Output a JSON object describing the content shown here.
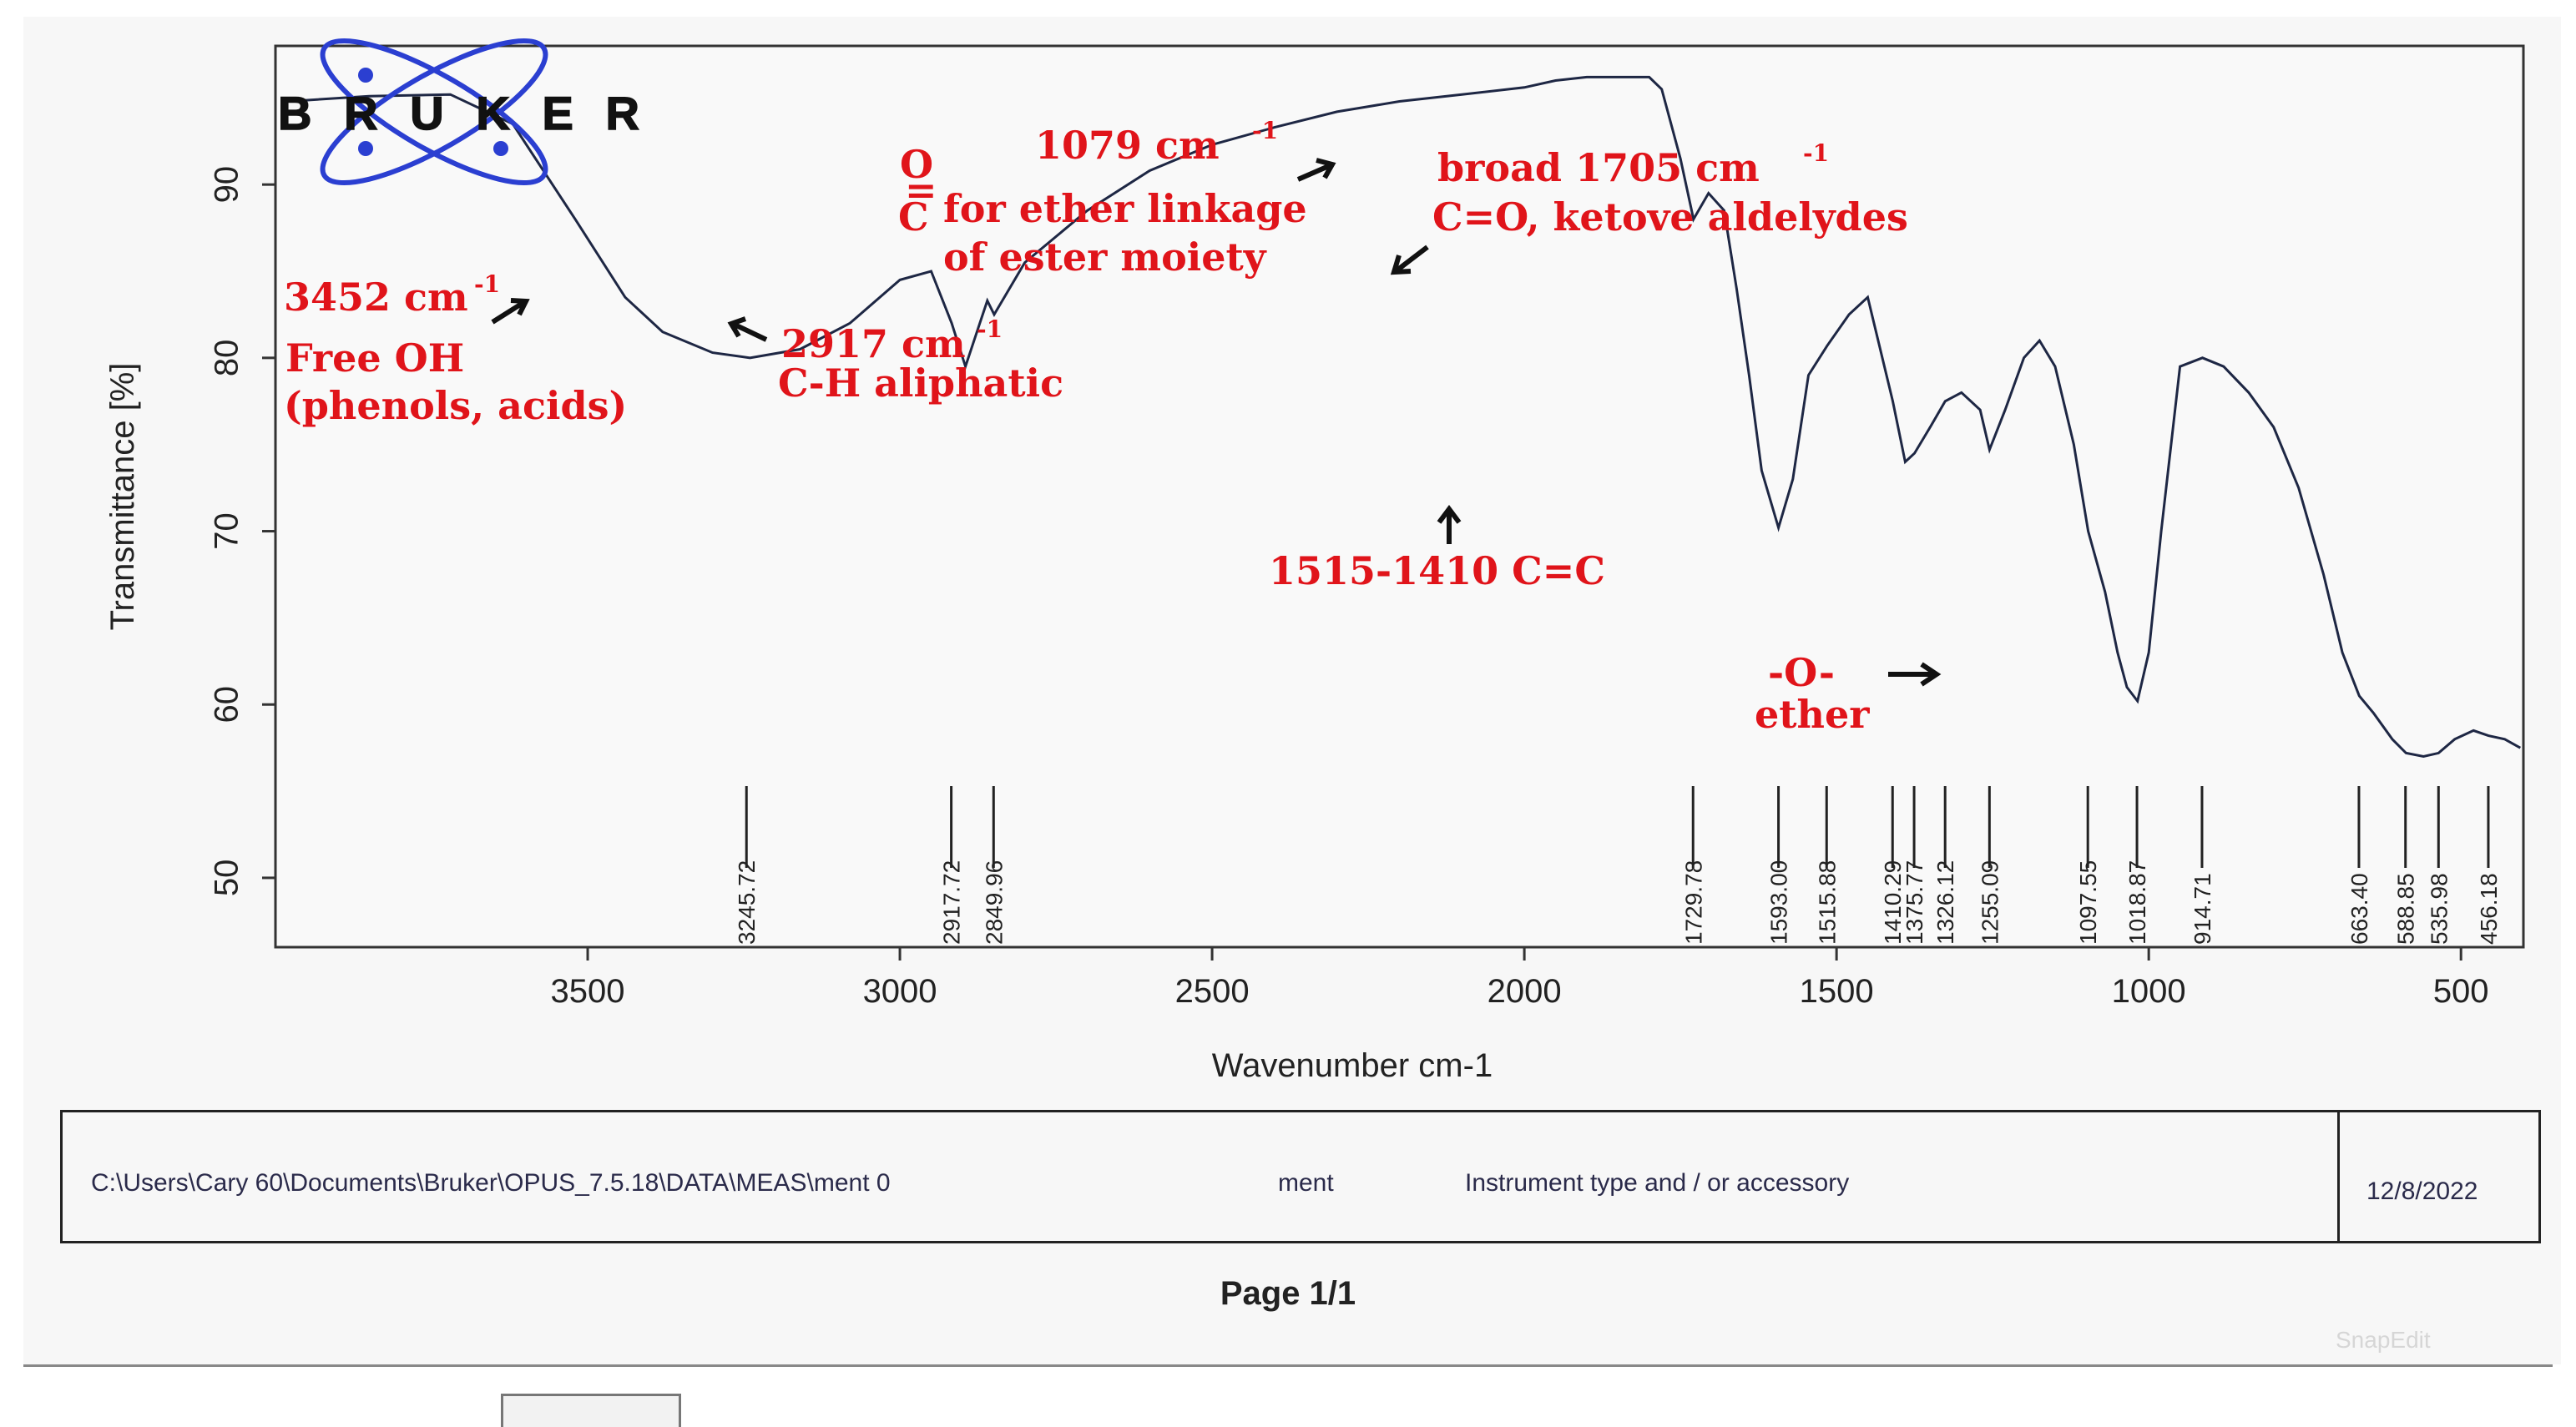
{
  "chart_data": {
    "type": "line",
    "title": "",
    "xlabel": "Wavenumber cm-1",
    "ylabel": "Transmittance [%]",
    "x_reversed": true,
    "xlim": [
      4000,
      400
    ],
    "ylim": [
      46,
      98
    ],
    "x_ticks": [
      3500,
      3000,
      2500,
      2000,
      1500,
      1000,
      500
    ],
    "y_ticks": [
      50,
      60,
      70,
      80,
      90
    ],
    "series": [
      {
        "x": [
          3980,
          3850,
          3720,
          3620,
          3520,
          3440,
          3380,
          3300,
          3240,
          3160,
          3080,
          3000,
          2950,
          2917,
          2895,
          2872,
          2860,
          2849,
          2800,
          2700,
          2600,
          2500,
          2400,
          2300,
          2200,
          2100,
          2000,
          1950,
          1900,
          1850,
          1800,
          1780,
          1750,
          1729,
          1705,
          1680,
          1660,
          1640,
          1620,
          1593,
          1570,
          1545,
          1515,
          1480,
          1450,
          1420,
          1410,
          1390,
          1375,
          1350,
          1326,
          1300,
          1270,
          1255,
          1230,
          1200,
          1175,
          1150,
          1120,
          1097,
          1070,
          1050,
          1035,
          1018,
          1000,
          980,
          950,
          914,
          880,
          840,
          800,
          760,
          720,
          690,
          663,
          640,
          610,
          588,
          560,
          536,
          510,
          480,
          456,
          430,
          405
        ],
        "y": [
          94.8,
          95.1,
          95.2,
          93.5,
          88,
          83.5,
          81.5,
          80.3,
          80,
          80.5,
          82,
          84.5,
          85,
          82,
          79.5,
          82,
          83.3,
          82.5,
          85.5,
          88.5,
          90.8,
          92.3,
          93.3,
          94.2,
          94.8,
          95.2,
          95.6,
          96,
          96.2,
          96.2,
          96.2,
          95.5,
          91.5,
          88,
          89.5,
          88.5,
          84,
          79,
          73.5,
          70.2,
          73,
          79,
          80.7,
          82.5,
          83.5,
          79,
          77.5,
          74,
          74.5,
          76,
          77.5,
          78,
          77,
          74.7,
          77,
          80,
          81,
          79.5,
          75,
          70,
          66.5,
          63,
          61,
          60.2,
          63,
          70,
          79.5,
          80,
          79.5,
          78,
          76,
          72.5,
          67.5,
          63,
          60.5,
          59.5,
          58,
          57.2,
          57,
          57.2,
          58,
          58.5,
          58.2,
          58,
          57.5
        ]
      }
    ],
    "peaks": [
      "3245.72",
      "2917.72",
      "2849.96",
      "1729.78",
      "1593.00",
      "1515.88",
      "1410.29",
      "1375.77",
      "1326.12",
      "1255.09",
      "1097.55",
      "1018.87",
      "914.71",
      "663.40",
      "588.85",
      "535.98",
      "456.18"
    ],
    "annotations": {
      "oh_wavenumber": "3452 cm",
      "oh_sup": "-1",
      "oh_line1": "Free OH",
      "oh_line2": "(phenols, acids)",
      "ch_wavenumber": "2917 cm",
      "ch_sup": "-1",
      "ch_label": "C-H aliphatic",
      "ester_wavenumber": "1079 cm",
      "ester_sup": "-1",
      "ester_o": "O",
      "ester_bond": "=",
      "ester_c": "C",
      "ester_line1": "for ether linkage",
      "ester_line2": "of ester moiety",
      "carbonyl_line1": "broad 1705 cm",
      "carbonyl_sup": "-1",
      "carbonyl_line2": "C=O, ketove aldelydes",
      "cc_label": "1515-1410 C=C",
      "ether_line1": "-O-",
      "ether_line2": "ether"
    }
  },
  "logo": {
    "text": "BRUKER"
  },
  "footer": {
    "path": "C:\\Users\\Cary 60\\Documents\\Bruker\\OPUS_7.5.18\\DATA\\MEAS\\ment 0",
    "sample": "ment",
    "instrument": "Instrument type and / or accessory",
    "date": "12/8/2022"
  },
  "page_label": "Page 1/1",
  "watermark": "SnapEdit",
  "colors": {
    "annotation": "#e0141a",
    "trace": "#1e2744",
    "logo_orbit": "#2b3fd1"
  }
}
